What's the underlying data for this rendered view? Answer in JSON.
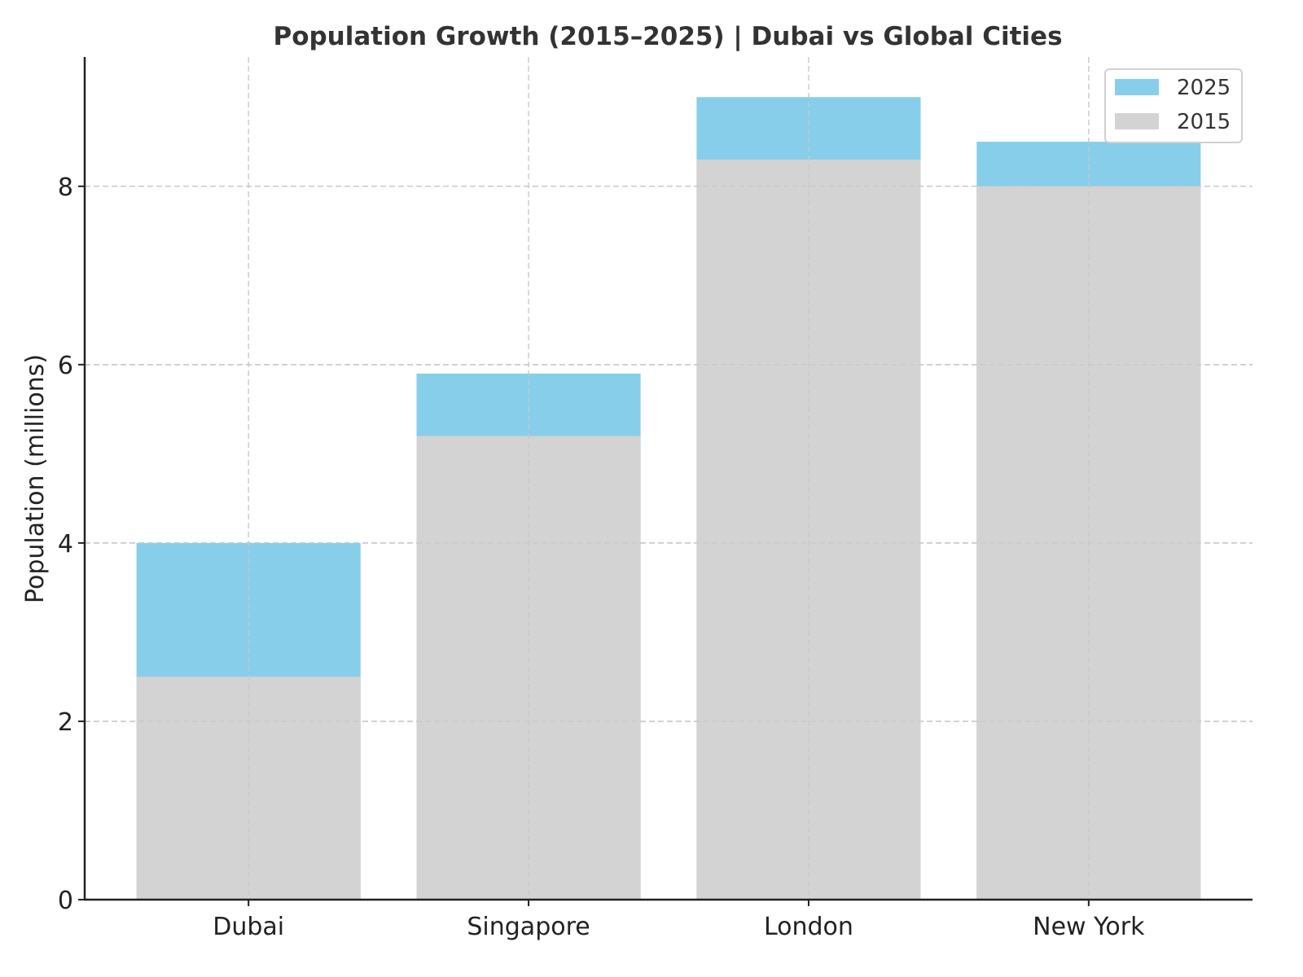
{
  "chart_data": {
    "type": "bar",
    "stacked": false,
    "overlay": true,
    "title": "Population Growth (2015–2025) | Dubai vs Global Cities",
    "xlabel": "",
    "ylabel": "Population (millions)",
    "categories": [
      "Dubai",
      "Singapore",
      "London",
      "New York"
    ],
    "series": [
      {
        "name": "2025",
        "values": [
          4.0,
          5.9,
          9.0,
          8.5
        ],
        "color": "#87CEEB"
      },
      {
        "name": "2015",
        "values": [
          2.5,
          5.2,
          8.3,
          8.0
        ],
        "color": "#D3D3D3"
      }
    ],
    "draw_order": [
      "2025",
      "2015"
    ],
    "legend_order": [
      "2025",
      "2015"
    ],
    "ylim": [
      0,
      9.45
    ],
    "xlim": [
      -0.585,
      3.585
    ],
    "yticks": [
      0,
      2,
      4,
      6,
      8
    ],
    "ytick_labels": [
      "0",
      "2",
      "4",
      "6",
      "8"
    ],
    "bar_width": 0.8,
    "grid": true,
    "legend_position": "top-right",
    "colors": {
      "axis": "#222222",
      "grid": "#c8c8c8",
      "title": "#333333"
    }
  }
}
